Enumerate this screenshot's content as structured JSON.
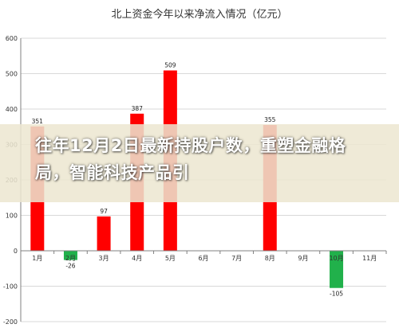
{
  "chart_data": {
    "type": "bar",
    "title": "北上资金今年以来净流入情况（亿元）",
    "categories": [
      "1月",
      "2月",
      "3月",
      "4月",
      "5月",
      "6月",
      "7月",
      "8月",
      "9月",
      "10月",
      "11月"
    ],
    "values": [
      351,
      -26,
      97,
      387,
      509,
      null,
      null,
      355,
      null,
      -105,
      null
    ],
    "data_labels": [
      "351",
      "-26",
      "97",
      "387",
      "509",
      "",
      "",
      "355",
      "",
      "-105",
      ""
    ],
    "ylim": [
      -200,
      600
    ],
    "yticks": [
      "600",
      "500",
      "400",
      "300",
      "200",
      "100",
      "0",
      "-100",
      "-200"
    ],
    "ytick_values": [
      600,
      500,
      400,
      300,
      200,
      100,
      0,
      -100,
      -200
    ],
    "grid": true,
    "legend": "none",
    "colors": {
      "positive": "#ff0000",
      "negative": "#21b14b",
      "grid": "#d9d9d9",
      "axis": "#808080"
    }
  },
  "overlay": {
    "headline": "往年12月2日最新持股户数，重塑金融格局，智能科技产品引"
  }
}
